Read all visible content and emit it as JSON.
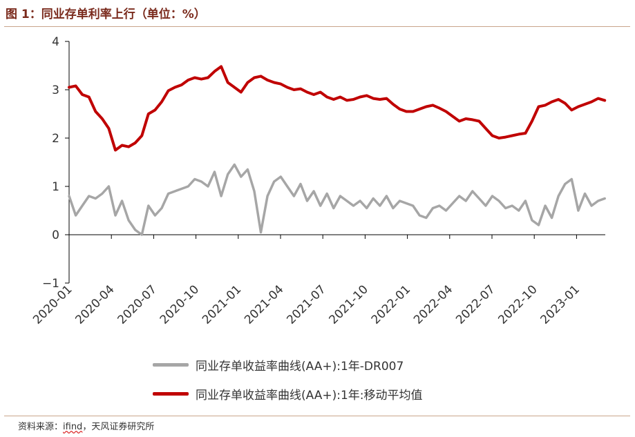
{
  "header": {
    "figure_title": "图 1：同业存单利率上行（单位：%）"
  },
  "footer": {
    "source_prefix": "资料来源：",
    "source_ifind": "ifind",
    "source_suffix": "，天风证券研究所"
  },
  "colors": {
    "series_daily": "#a6a6a6",
    "series_ma": "#c00000",
    "axis": "#000000",
    "title": "#7a2a1c"
  },
  "chart_data": {
    "type": "line",
    "title": "",
    "xlabel": "",
    "ylabel": "",
    "ylim": [
      -1,
      4
    ],
    "yticks": [
      -1,
      0,
      1,
      2,
      3,
      4
    ],
    "ytick_labels": [
      "−1",
      "0",
      "1",
      "2",
      "3",
      "4"
    ],
    "xticks": [
      "2020-01",
      "2020-04",
      "2020-07",
      "2020-10",
      "2021-01",
      "2021-04",
      "2021-07",
      "2021-10",
      "2022-01",
      "2022-04",
      "2022-07",
      "2022-10",
      "2023-01"
    ],
    "x_range": [
      "2020-01",
      "2023-03"
    ],
    "grid": false,
    "legend_position": "bottom",
    "series": [
      {
        "name": "同业存单收益率曲线(AA+):1年-DR007",
        "color": "#a6a6a6",
        "x": [
          "2020-01",
          "2020-01",
          "2020-02",
          "2020-02",
          "2020-03",
          "2020-03",
          "2020-03",
          "2020-04",
          "2020-04",
          "2020-05",
          "2020-05",
          "2020-06",
          "2020-06",
          "2020-06",
          "2020-07",
          "2020-07",
          "2020-08",
          "2020-08",
          "2020-09",
          "2020-09",
          "2020-10",
          "2020-10",
          "2020-11",
          "2020-11",
          "2020-12",
          "2020-12",
          "2020-12",
          "2021-01",
          "2021-01",
          "2021-01",
          "2021-02",
          "2021-02",
          "2021-03",
          "2021-03",
          "2021-04",
          "2021-04",
          "2021-05",
          "2021-05",
          "2021-06",
          "2021-06",
          "2021-07",
          "2021-07",
          "2021-08",
          "2021-08",
          "2021-09",
          "2021-09",
          "2021-10",
          "2021-10",
          "2021-11",
          "2021-11",
          "2021-12",
          "2021-12",
          "2022-01",
          "2022-01",
          "2022-02",
          "2022-02",
          "2022-03",
          "2022-03",
          "2022-04",
          "2022-04",
          "2022-05",
          "2022-05",
          "2022-06",
          "2022-06",
          "2022-07",
          "2022-07",
          "2022-08",
          "2022-08",
          "2022-09",
          "2022-09",
          "2022-10",
          "2022-10",
          "2022-11",
          "2022-11",
          "2022-11",
          "2022-12",
          "2022-12",
          "2023-01",
          "2023-01",
          "2023-02",
          "2023-02",
          "2023-03"
        ],
        "values": [
          0.8,
          0.4,
          0.6,
          0.8,
          0.75,
          0.85,
          1.0,
          0.4,
          0.7,
          0.3,
          0.1,
          0.0,
          0.6,
          0.4,
          0.55,
          0.85,
          0.9,
          0.95,
          1.0,
          1.15,
          1.1,
          1.0,
          1.3,
          0.8,
          1.25,
          1.45,
          1.2,
          1.35,
          0.9,
          0.05,
          0.8,
          1.1,
          1.2,
          1.0,
          0.8,
          1.05,
          0.7,
          0.9,
          0.6,
          0.85,
          0.55,
          0.8,
          0.7,
          0.6,
          0.7,
          0.55,
          0.75,
          0.6,
          0.8,
          0.55,
          0.7,
          0.65,
          0.6,
          0.4,
          0.35,
          0.55,
          0.6,
          0.5,
          0.65,
          0.8,
          0.7,
          0.9,
          0.75,
          0.6,
          0.8,
          0.7,
          0.55,
          0.6,
          0.5,
          0.7,
          0.3,
          0.2,
          0.6,
          0.35,
          0.8,
          1.05,
          1.15,
          0.5,
          0.85,
          0.6,
          0.7,
          0.75
        ]
      },
      {
        "name": "同业存单收益率曲线(AA+):1年:移动平均值",
        "color": "#c00000",
        "x": [
          "2020-01",
          "2020-01",
          "2020-02",
          "2020-02",
          "2020-03",
          "2020-03",
          "2020-03",
          "2020-04",
          "2020-04",
          "2020-05",
          "2020-05",
          "2020-06",
          "2020-06",
          "2020-06",
          "2020-07",
          "2020-07",
          "2020-08",
          "2020-08",
          "2020-09",
          "2020-09",
          "2020-10",
          "2020-10",
          "2020-11",
          "2020-11",
          "2020-12",
          "2020-12",
          "2020-12",
          "2021-01",
          "2021-01",
          "2021-01",
          "2021-02",
          "2021-02",
          "2021-03",
          "2021-03",
          "2021-04",
          "2021-04",
          "2021-05",
          "2021-05",
          "2021-06",
          "2021-06",
          "2021-07",
          "2021-07",
          "2021-08",
          "2021-08",
          "2021-09",
          "2021-09",
          "2021-10",
          "2021-10",
          "2021-11",
          "2021-11",
          "2021-12",
          "2021-12",
          "2022-01",
          "2022-01",
          "2022-02",
          "2022-02",
          "2022-03",
          "2022-03",
          "2022-04",
          "2022-04",
          "2022-05",
          "2022-05",
          "2022-06",
          "2022-06",
          "2022-07",
          "2022-07",
          "2022-08",
          "2022-08",
          "2022-09",
          "2022-09",
          "2022-10",
          "2022-10",
          "2022-11",
          "2022-11",
          "2022-11",
          "2022-12",
          "2022-12",
          "2023-01",
          "2023-01",
          "2023-02",
          "2023-02",
          "2023-03"
        ],
        "values": [
          3.05,
          3.08,
          2.9,
          2.85,
          2.55,
          2.4,
          2.2,
          1.75,
          1.85,
          1.82,
          1.9,
          2.05,
          2.5,
          2.58,
          2.75,
          2.98,
          3.05,
          3.1,
          3.2,
          3.25,
          3.22,
          3.25,
          3.38,
          3.48,
          3.15,
          3.05,
          2.95,
          3.15,
          3.25,
          3.28,
          3.2,
          3.15,
          3.12,
          3.05,
          3.0,
          3.02,
          2.95,
          2.9,
          2.95,
          2.85,
          2.8,
          2.85,
          2.78,
          2.8,
          2.85,
          2.88,
          2.82,
          2.8,
          2.82,
          2.7,
          2.6,
          2.55,
          2.55,
          2.6,
          2.65,
          2.68,
          2.62,
          2.55,
          2.45,
          2.35,
          2.4,
          2.38,
          2.35,
          2.2,
          2.05,
          2.0,
          2.02,
          2.05,
          2.08,
          2.1,
          2.35,
          2.65,
          2.68,
          2.75,
          2.8,
          2.72,
          2.58,
          2.65,
          2.7,
          2.75,
          2.82,
          2.78
        ]
      }
    ]
  }
}
